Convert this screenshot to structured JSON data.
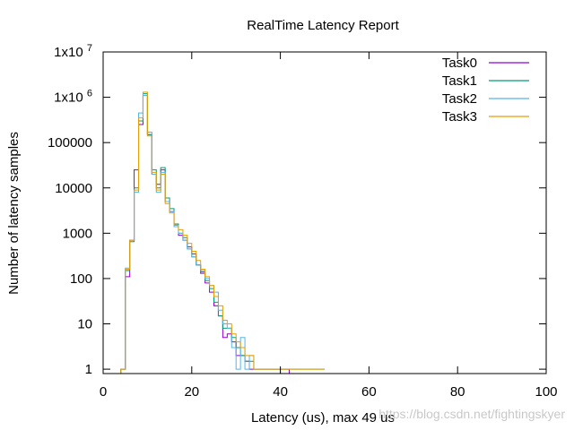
{
  "chart_data": {
    "type": "line",
    "step": true,
    "title": "RealTime Latency Report",
    "xlabel": "Latency (us), max 49 us",
    "ylabel": "Number of latency samples",
    "xlim": [
      0,
      100
    ],
    "ylim": [
      0.8,
      10000000
    ],
    "yscale": "log",
    "xticks": [
      {
        "v": 0,
        "label": "0"
      },
      {
        "v": 20,
        "label": "20"
      },
      {
        "v": 40,
        "label": "40"
      },
      {
        "v": 60,
        "label": "60"
      },
      {
        "v": 80,
        "label": "80"
      },
      {
        "v": 100,
        "label": "100"
      }
    ],
    "yticks": [
      {
        "v": 1,
        "label": "1"
      },
      {
        "v": 10,
        "label": "10"
      },
      {
        "v": 100,
        "label": "100"
      },
      {
        "v": 1000,
        "label": "1000"
      },
      {
        "v": 10000,
        "label": "10000"
      },
      {
        "v": 100000,
        "label": "100000"
      },
      {
        "v": 1000000,
        "base": "1x10",
        "exp": "6"
      },
      {
        "v": 10000000,
        "base": "1x10",
        "exp": "7"
      }
    ],
    "legend_position": "top-right",
    "x": [
      4,
      5,
      6,
      7,
      8,
      9,
      10,
      11,
      12,
      13,
      14,
      15,
      16,
      17,
      18,
      19,
      20,
      21,
      22,
      23,
      24,
      25,
      26,
      27,
      28,
      29,
      30,
      31,
      32,
      33,
      34,
      35,
      36,
      37,
      38,
      39,
      40,
      41,
      42,
      43,
      44,
      45,
      46,
      47,
      48,
      49
    ],
    "series": [
      {
        "name": "Task0",
        "color": "#9400d3",
        "values": [
          1,
          110,
          700,
          25000,
          250000,
          1100000,
          150000,
          20000,
          12000,
          25000,
          5000,
          3000,
          1500,
          900,
          700,
          500,
          350,
          200,
          130,
          80,
          50,
          25,
          15,
          5,
          6,
          4,
          2,
          2,
          1.5,
          1,
          1,
          1,
          1,
          1,
          1,
          1,
          1,
          1,
          0,
          0,
          0,
          0,
          0,
          0,
          0,
          0
        ]
      },
      {
        "name": "Task1",
        "color": "#009e73",
        "values": [
          1,
          150,
          650,
          10000,
          300000,
          1200000,
          150000,
          25000,
          10000,
          28000,
          6000,
          3500,
          1600,
          1000,
          800,
          450,
          300,
          200,
          140,
          90,
          60,
          30,
          15,
          8,
          8,
          5,
          3,
          2,
          1.5,
          1.5,
          1,
          1,
          1,
          1,
          1,
          1,
          1,
          1,
          1,
          1,
          1,
          1,
          1,
          1,
          1,
          1
        ]
      },
      {
        "name": "Task2",
        "color": "#56b4e9",
        "values": [
          1,
          170,
          700,
          8000,
          450000,
          1100000,
          170000,
          20000,
          8000,
          22000,
          5000,
          3000,
          1400,
          1000,
          700,
          450,
          300,
          200,
          150,
          100,
          70,
          50,
          20,
          10,
          8,
          3,
          1,
          5,
          1,
          2,
          1,
          1,
          1,
          1,
          1,
          1,
          0,
          0,
          0,
          0,
          0,
          0,
          0,
          0,
          0,
          0
        ]
      },
      {
        "name": "Task3",
        "color": "#e69f00",
        "values": [
          1,
          160,
          700,
          9000,
          350000,
          1300000,
          140000,
          22000,
          9000,
          20000,
          4500,
          2800,
          1500,
          1200,
          900,
          600,
          400,
          250,
          160,
          110,
          70,
          40,
          25,
          12,
          10,
          6,
          4,
          3,
          2,
          2,
          1,
          1,
          1,
          1,
          1,
          1,
          1,
          1,
          1,
          1,
          1,
          1,
          1,
          1,
          1,
          1
        ]
      }
    ]
  },
  "watermark": "https://blog.csdn.net/fightingskyer"
}
